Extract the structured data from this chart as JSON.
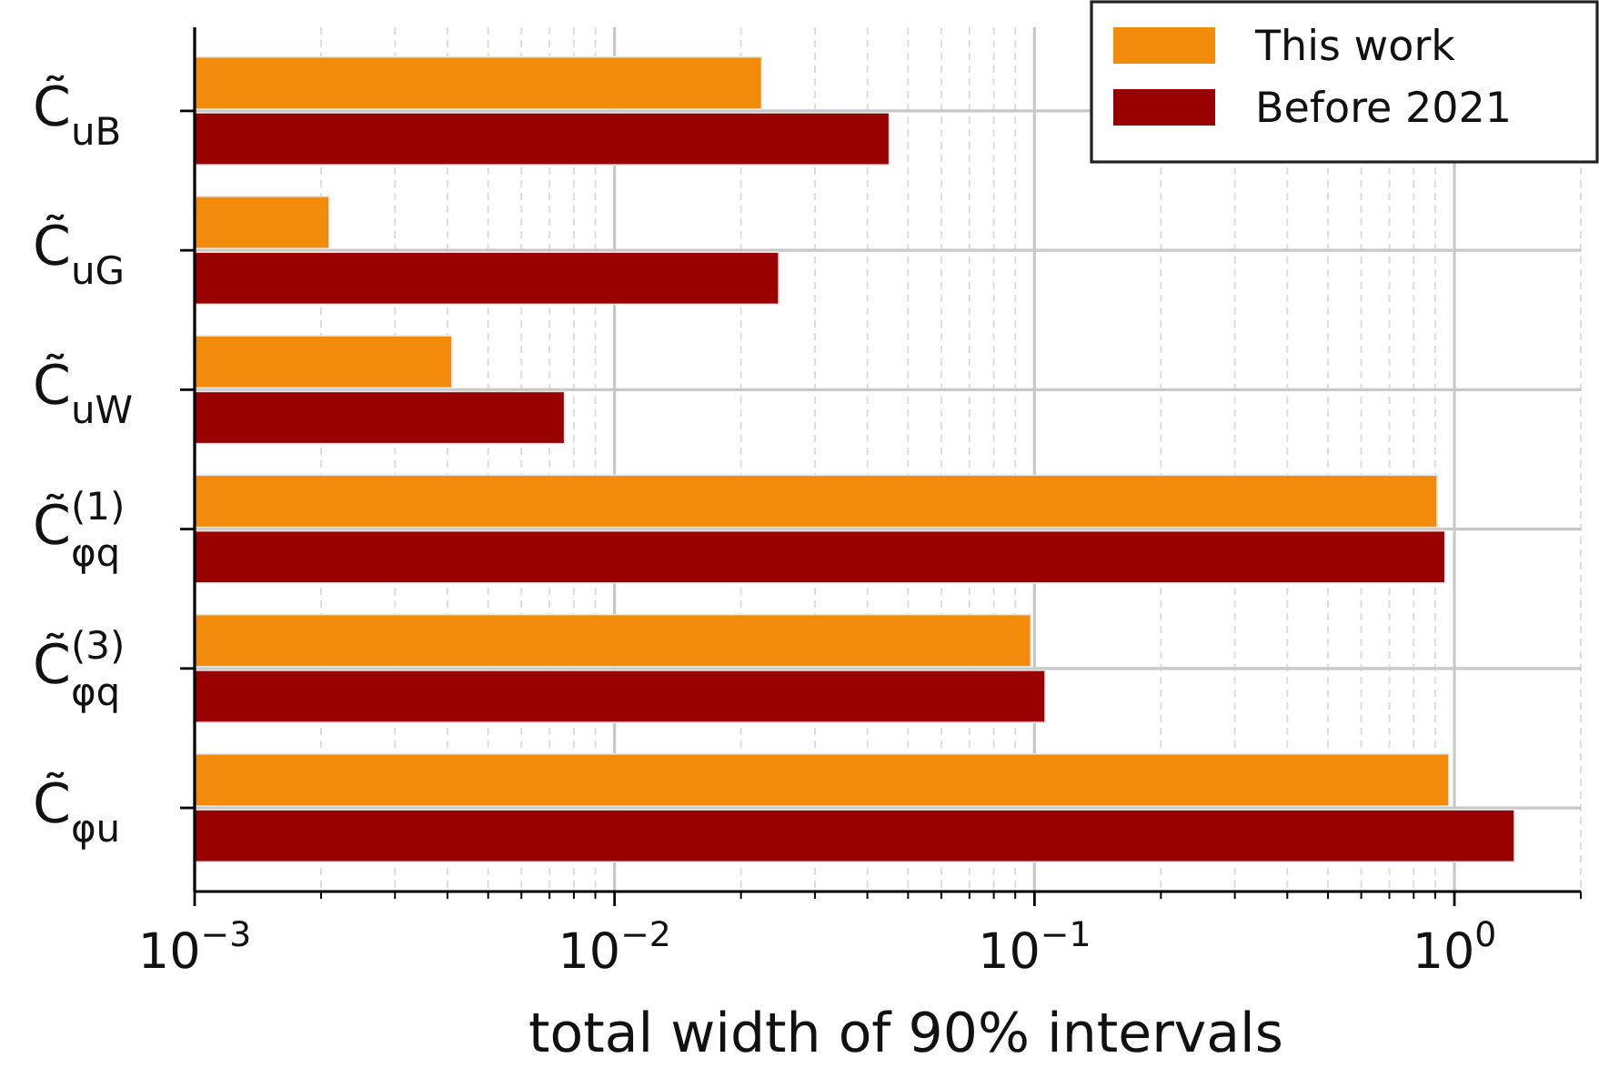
{
  "chart_data": {
    "type": "bar",
    "orientation": "horizontal",
    "log": "x",
    "categories": [
      "C̃$_{uB}$",
      "C̃$_{uG}$",
      "C̃$_{uW}$",
      "C̃$^{(1)}$$_{φq}$",
      "C̃$^{(3)}$$_{φq}$",
      "C̃$_{φu}$"
    ],
    "series": [
      {
        "name": "This work",
        "color": "#f28a0b",
        "values": [
          0.0224,
          0.00209,
          0.0041,
          0.91,
          0.098,
          0.97
        ]
      },
      {
        "name": "Before 2021",
        "color": "#990000",
        "values": [
          0.0451,
          0.0246,
          0.0076,
          0.95,
          0.106,
          1.39
        ]
      }
    ],
    "xlabel": "total width of 90% intervals",
    "xlim": [
      0.001,
      2
    ],
    "xticks": [
      {
        "value": 0.001,
        "label": "10$^{−3}$"
      },
      {
        "value": 0.002,
        "label": null
      },
      {
        "value": 0.003,
        "label": null
      },
      {
        "value": 0.004,
        "label": null
      },
      {
        "value": 0.005,
        "label": null
      },
      {
        "value": 0.006,
        "label": null
      },
      {
        "value": 0.007,
        "label": null
      },
      {
        "value": 0.008,
        "label": null
      },
      {
        "value": 0.009,
        "label": null
      },
      {
        "value": 0.01,
        "label": "10$^{−2}$"
      },
      {
        "value": 0.02,
        "label": null
      },
      {
        "value": 0.03,
        "label": null
      },
      {
        "value": 0.04,
        "label": null
      },
      {
        "value": 0.05,
        "label": null
      },
      {
        "value": 0.06,
        "label": null
      },
      {
        "value": 0.07,
        "label": null
      },
      {
        "value": 0.08,
        "label": null
      },
      {
        "value": 0.09,
        "label": null
      },
      {
        "value": 0.1,
        "label": "10$^{−1}$"
      },
      {
        "value": 0.2,
        "label": null
      },
      {
        "value": 0.3,
        "label": null
      },
      {
        "value": 0.4,
        "label": null
      },
      {
        "value": 0.5,
        "label": null
      },
      {
        "value": 0.6,
        "label": null
      },
      {
        "value": 0.7,
        "label": null
      },
      {
        "value": 0.8,
        "label": null
      },
      {
        "value": 0.9,
        "label": null
      },
      {
        "value": 1,
        "label": "10$^{0}$"
      },
      {
        "value": 2,
        "label": null
      }
    ],
    "grid": true,
    "legend": "top right"
  }
}
